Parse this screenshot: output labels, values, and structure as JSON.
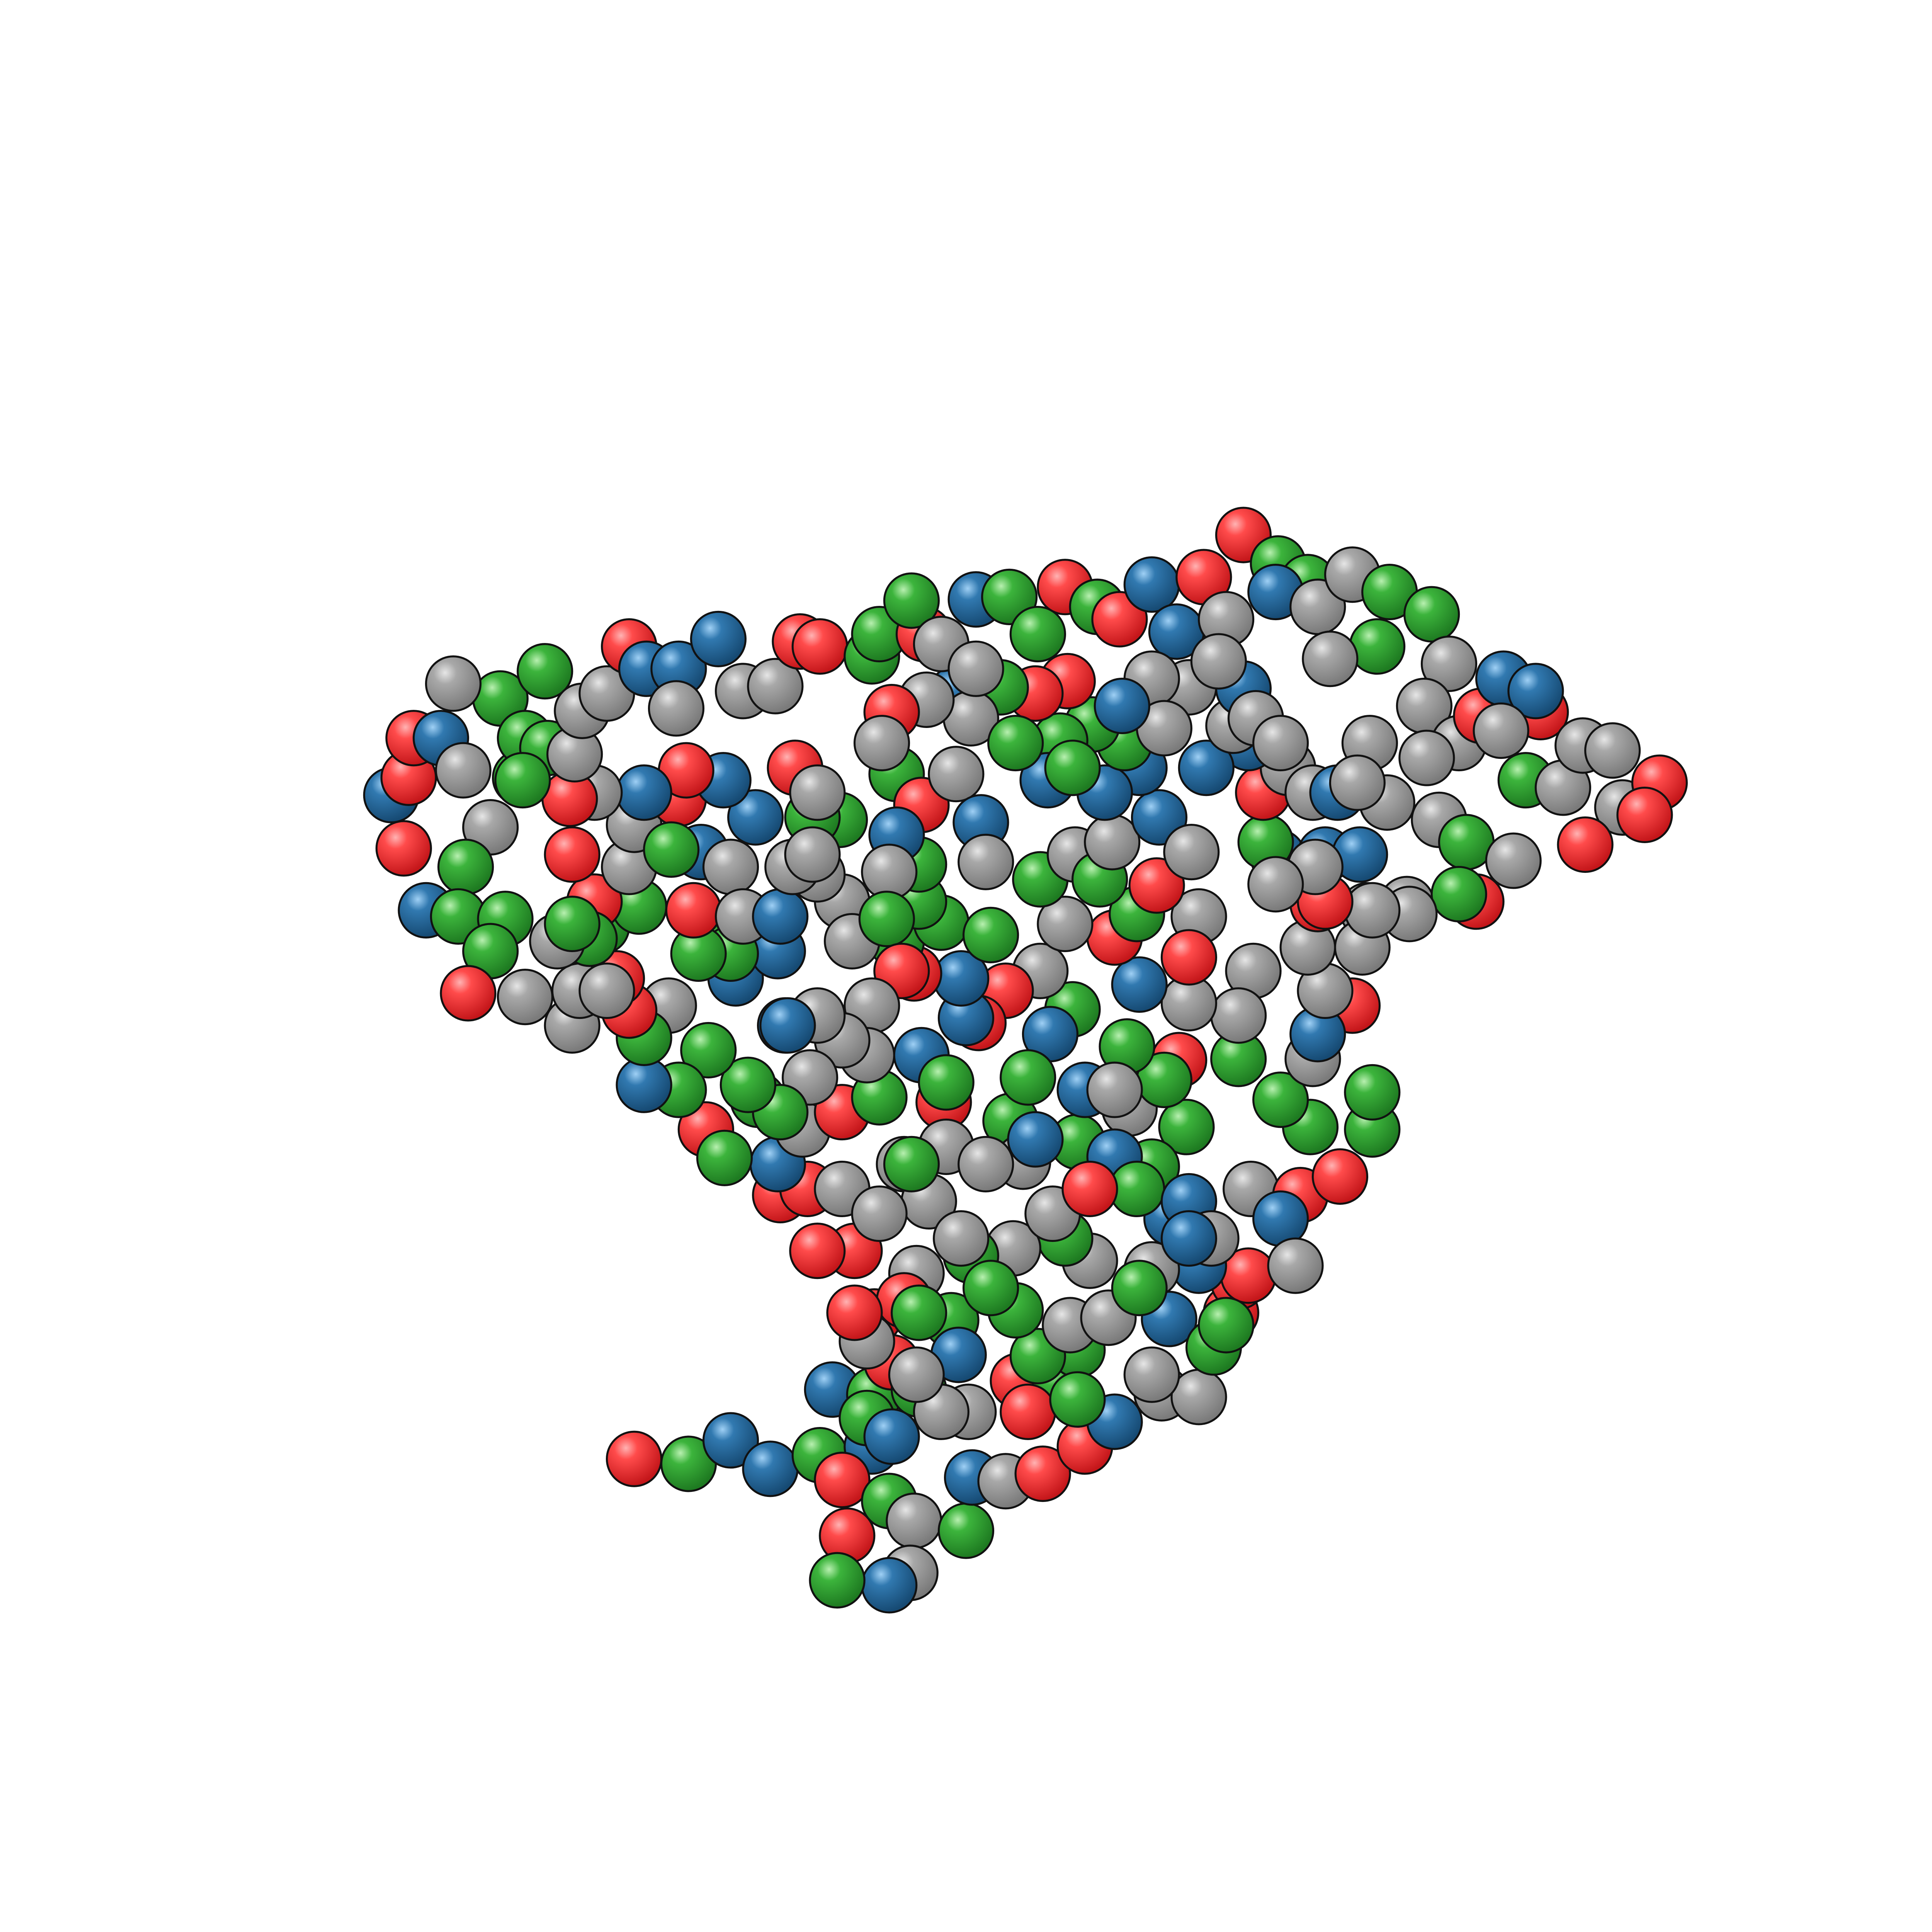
{
  "palette": {
    "red": "#e8262a",
    "green": "#2a9a2d",
    "blue": "#246496",
    "gray": "#9a9a9a",
    "outline": "#111111",
    "background": "#ffffff"
  },
  "bead_types": [
    "gray",
    "green",
    "red",
    "blue"
  ],
  "subject": "bead-chain-molecule"
}
